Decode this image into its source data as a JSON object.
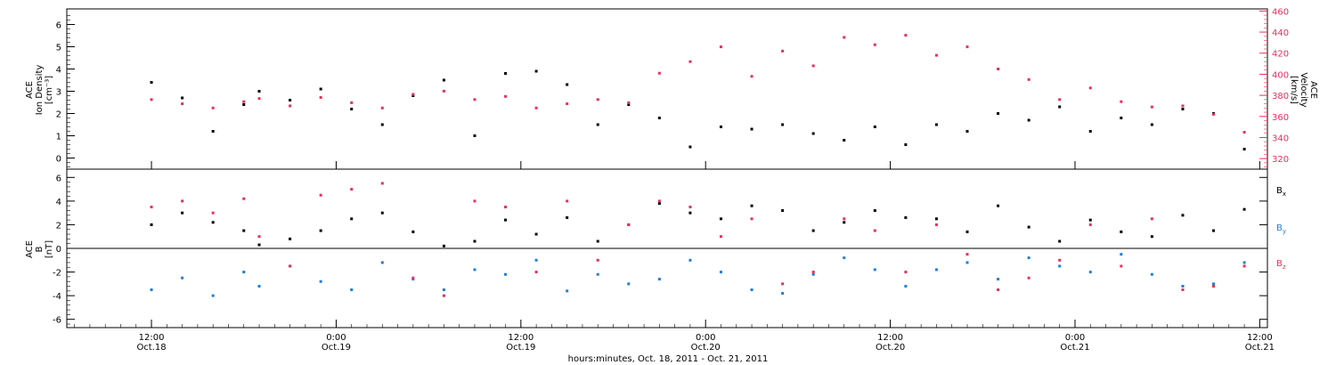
{
  "chart_data": [
    {
      "type": "scatter",
      "panel": "top",
      "ylabel_left": [
        "ACE",
        "Ion Density",
        "[cm⁻³]"
      ],
      "ylabel_right": [
        "ACE",
        "Velocity",
        "[km/s]"
      ],
      "ylim_left": [
        -0.5,
        6.7
      ],
      "ylim_right": [
        310,
        462
      ],
      "yticks_left": [
        0,
        1,
        2,
        3,
        4,
        5,
        6
      ],
      "yticks_right": [
        320,
        340,
        360,
        380,
        400,
        420,
        440,
        460
      ],
      "series": [
        {
          "name": "",
          "axis": "left",
          "color": "#000000",
          "x": [
            0,
            2,
            4,
            6,
            7,
            9,
            11,
            13,
            15,
            17,
            19,
            21,
            23,
            25,
            27,
            29,
            31,
            33,
            35,
            37,
            39,
            41,
            43,
            45,
            47,
            49,
            51,
            53,
            55,
            57,
            59,
            61,
            63,
            65,
            67,
            69,
            71
          ],
          "y": [
            3.4,
            2.7,
            1.2,
            2.4,
            3.0,
            2.6,
            3.1,
            2.2,
            1.5,
            2.8,
            3.5,
            1.0,
            3.8,
            3.9,
            3.3,
            1.5,
            2.4,
            1.8,
            0.5,
            1.4,
            1.3,
            1.5,
            1.1,
            0.8,
            1.4,
            0.6,
            1.5,
            1.2,
            2.0,
            1.7,
            2.3,
            1.2,
            1.8,
            1.5,
            2.2,
            2.0,
            0.4
          ]
        },
        {
          "name": "",
          "axis": "right",
          "color": "#e8305a",
          "x": [
            0,
            2,
            4,
            6,
            7,
            9,
            11,
            13,
            15,
            17,
            19,
            21,
            23,
            25,
            27,
            29,
            31,
            33,
            35,
            37,
            39,
            41,
            43,
            45,
            47,
            49,
            51,
            53,
            55,
            57,
            59,
            61,
            63,
            65,
            67,
            69,
            71
          ],
          "y": [
            376,
            372,
            368,
            374,
            377,
            370,
            378,
            373,
            368,
            381,
            384,
            376,
            379,
            368,
            372,
            376,
            373,
            401,
            412,
            426,
            398,
            422,
            408,
            435,
            428,
            437,
            418,
            426,
            405,
            395,
            376,
            387,
            374,
            369,
            370,
            362,
            345
          ]
        }
      ]
    },
    {
      "type": "scatter",
      "panel": "bottom",
      "ylabel": [
        "ACE",
        "B",
        "[nT]"
      ],
      "ylim": [
        -6.7,
        6.7
      ],
      "yticks": [
        -6,
        -4,
        -2,
        0,
        2,
        4,
        6
      ],
      "zero_line": true,
      "series": [
        {
          "name": "Bx",
          "color": "#000000",
          "x": [
            0,
            2,
            4,
            6,
            7,
            9,
            11,
            13,
            15,
            17,
            19,
            21,
            23,
            25,
            27,
            29,
            31,
            33,
            35,
            37,
            39,
            41,
            43,
            45,
            47,
            49,
            51,
            53,
            55,
            57,
            59,
            61,
            63,
            65,
            67,
            69,
            71
          ],
          "y": [
            2.0,
            3.0,
            2.2,
            1.5,
            0.3,
            0.8,
            1.5,
            2.5,
            3.0,
            1.4,
            0.2,
            0.6,
            2.4,
            1.2,
            2.6,
            0.6,
            2.0,
            3.8,
            3.0,
            2.5,
            3.6,
            3.2,
            1.5,
            2.2,
            3.2,
            2.6,
            2.5,
            1.4,
            3.6,
            1.8,
            0.6,
            2.4,
            1.4,
            1.0,
            2.8,
            1.5,
            3.3
          ]
        },
        {
          "name": "By",
          "color": "#1f7fd8",
          "x": [
            0,
            2,
            4,
            6,
            7,
            9,
            11,
            13,
            15,
            17,
            19,
            21,
            23,
            25,
            27,
            29,
            31,
            33,
            35,
            37,
            39,
            41,
            43,
            45,
            47,
            49,
            51,
            53,
            55,
            57,
            59,
            61,
            63,
            65,
            67,
            69,
            71
          ],
          "y": [
            -3.5,
            -2.5,
            -4.0,
            -2.0,
            -3.2,
            -1.5,
            -2.8,
            -3.5,
            -1.2,
            -2.6,
            -3.5,
            -1.8,
            -2.2,
            -1.0,
            -3.6,
            -2.2,
            -3.0,
            -2.6,
            -1.0,
            -2.0,
            -3.5,
            -3.8,
            -2.2,
            -0.8,
            -1.8,
            -3.2,
            -1.8,
            -1.2,
            -2.6,
            -0.8,
            -1.5,
            -2.0,
            -0.5,
            -2.2,
            -3.2,
            -3.0,
            -1.2
          ]
        },
        {
          "name": "Bz",
          "color": "#e8305a",
          "x": [
            0,
            2,
            4,
            6,
            7,
            9,
            11,
            13,
            15,
            17,
            19,
            21,
            23,
            25,
            27,
            29,
            31,
            33,
            35,
            37,
            39,
            41,
            43,
            45,
            47,
            49,
            51,
            53,
            55,
            57,
            59,
            61,
            63,
            65,
            67,
            69,
            71
          ],
          "y": [
            3.5,
            4.0,
            3.0,
            4.2,
            1.0,
            -1.5,
            4.5,
            5.0,
            5.5,
            -2.5,
            -4.0,
            4.0,
            3.5,
            -2.0,
            4.0,
            -1.0,
            2.0,
            4.0,
            3.5,
            1.0,
            2.5,
            -3.0,
            -2.0,
            2.5,
            1.5,
            -2.0,
            2.0,
            -0.5,
            -3.5,
            -2.5,
            -1.0,
            2.0,
            -1.5,
            2.5,
            -3.5,
            -3.2,
            -1.5
          ]
        }
      ],
      "legend": {
        "placement": "right",
        "entries": [
          {
            "base": "B",
            "sub": "x",
            "color": "#000000"
          },
          {
            "base": "B",
            "sub": "y",
            "color": "#1f7fd8"
          },
          {
            "base": "B",
            "sub": "z",
            "color": "#e8305a"
          }
        ]
      }
    }
  ],
  "x_axis": {
    "range_hours": [
      -5.5,
      72.5
    ],
    "ticks": [
      {
        "hour": 0,
        "time": "12:00",
        "date": "Oct.18"
      },
      {
        "hour": 12,
        "time": "0:00",
        "date": "Oct.19"
      },
      {
        "hour": 24,
        "time": "12:00",
        "date": "Oct.19"
      },
      {
        "hour": 36,
        "time": "0:00",
        "date": "Oct.20"
      },
      {
        "hour": 48,
        "time": "12:00",
        "date": "Oct.20"
      },
      {
        "hour": 60,
        "time": "0:00",
        "date": "Oct.21"
      },
      {
        "hour": 72,
        "time": "12:00",
        "date": "Oct.21"
      }
    ],
    "title": "hours:minutes, Oct. 18, 2011 - Oct. 21, 2011"
  },
  "colors": {
    "density": "#000000",
    "velocity": "#e8305a",
    "bx": "#000000",
    "by": "#1f7fd8",
    "bz": "#e8305a"
  }
}
